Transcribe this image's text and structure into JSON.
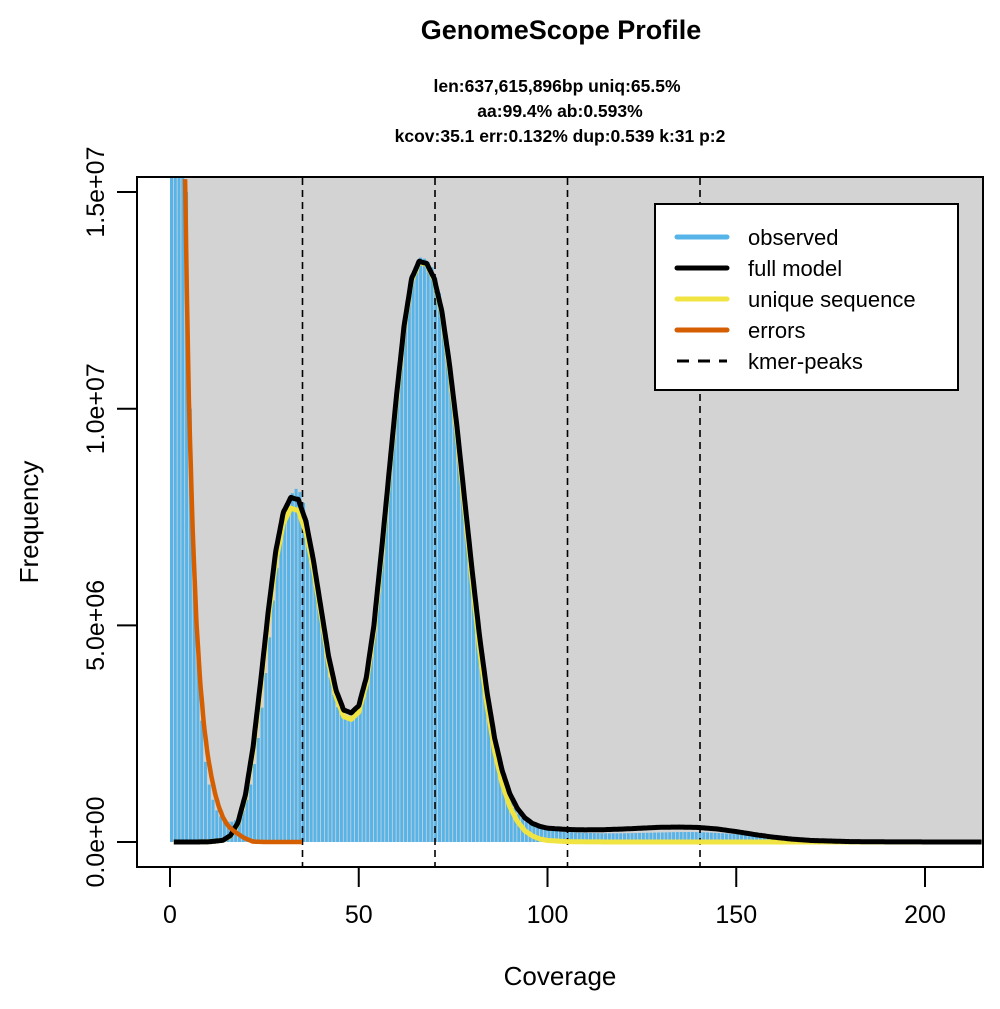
{
  "chart_data": {
    "type": "line",
    "title": "GenomeScope Profile",
    "subtitle_lines": [
      "len:637,615,896bp uniq:65.5%",
      "aa:99.4% ab:0.593%",
      "kcov:35.1 err:0.132%  dup:0.539  k:31 p:2"
    ],
    "xlabel": "Coverage",
    "ylabel": "Frequency",
    "xlim": [
      0,
      215
    ],
    "ylim": [
      0,
      15300000
    ],
    "x_ticks": [
      0,
      50,
      100,
      150,
      200
    ],
    "x_tick_labels": [
      "0",
      "50",
      "100",
      "150",
      "200"
    ],
    "y_ticks": [
      0,
      5000000,
      10000000,
      15000000
    ],
    "y_tick_labels": [
      "0.0e+00",
      "5.0e+06",
      "1.0e+07",
      "1.5e+07"
    ],
    "grid": false,
    "background": "#d3d3d3",
    "legend_position": "top-right",
    "kmer_peaks": [
      35.1,
      70.2,
      105.3,
      140.4
    ],
    "series": [
      {
        "name": "observed",
        "style": "histogram",
        "color": "#56b4e9",
        "x": [
          1,
          2,
          3,
          4,
          5,
          6,
          7,
          8,
          9,
          10,
          12,
          14,
          16,
          18,
          20,
          22,
          24,
          26,
          28,
          30,
          32,
          34,
          36,
          38,
          40,
          42,
          44,
          46,
          48,
          50,
          52,
          54,
          56,
          58,
          60,
          62,
          64,
          66,
          68,
          70,
          72,
          74,
          76,
          78,
          80,
          82,
          84,
          86,
          88,
          90,
          92,
          94,
          96,
          98,
          100,
          105,
          110,
          115,
          120,
          125,
          130,
          135,
          140,
          145,
          150,
          155,
          160,
          165,
          170,
          180,
          190,
          200,
          215
        ],
        "values": [
          20000000,
          20000000,
          20000000,
          18000000,
          12000000,
          8000000,
          5200000,
          3400000,
          2200000,
          1500000,
          800000,
          520000,
          450000,
          520000,
          800000,
          1500000,
          2700000,
          4300000,
          6000000,
          7300000,
          8000000,
          8200000,
          7700000,
          6600000,
          5200000,
          4000000,
          3200000,
          2850000,
          2780000,
          3000000,
          3700000,
          4900000,
          6500000,
          8300000,
          10100000,
          11700000,
          12900000,
          13500000,
          13450000,
          13200000,
          12500000,
          11300000,
          9800000,
          8100000,
          6400000,
          4800000,
          3500000,
          2400000,
          1600000,
          1050000,
          700000,
          500000,
          380000,
          320000,
          280000,
          230000,
          210000,
          200000,
          200000,
          210000,
          220000,
          230000,
          230000,
          210000,
          180000,
          140000,
          110000,
          80000,
          60000,
          40000,
          30000,
          25000,
          20000
        ]
      },
      {
        "name": "full model",
        "style": "line",
        "color": "#000000",
        "x": [
          1,
          5,
          10,
          14,
          16,
          18,
          20,
          22,
          24,
          26,
          28,
          30,
          32,
          34,
          36,
          38,
          40,
          42,
          44,
          46,
          48,
          50,
          52,
          54,
          56,
          58,
          60,
          62,
          64,
          66,
          68,
          70,
          72,
          74,
          76,
          78,
          80,
          82,
          84,
          86,
          88,
          90,
          92,
          94,
          96,
          98,
          100,
          105,
          110,
          115,
          120,
          125,
          130,
          135,
          140,
          145,
          150,
          155,
          160,
          165,
          170,
          180,
          190,
          200,
          215
        ],
        "values": [
          0,
          0,
          2000,
          40000,
          150000,
          450000,
          1100000,
          2200000,
          3700000,
          5300000,
          6700000,
          7600000,
          7950000,
          7900000,
          7400000,
          6500000,
          5400000,
          4300000,
          3500000,
          3050000,
          2980000,
          3150000,
          3800000,
          5000000,
          6700000,
          8500000,
          10300000,
          11900000,
          13000000,
          13400000,
          13350000,
          13000000,
          12250000,
          11050000,
          9600000,
          7950000,
          6300000,
          4750000,
          3450000,
          2400000,
          1650000,
          1120000,
          780000,
          560000,
          430000,
          360000,
          320000,
          290000,
          280000,
          285000,
          300000,
          320000,
          340000,
          345000,
          335000,
          300000,
          240000,
          170000,
          110000,
          65000,
          35000,
          10000,
          3000,
          1000,
          0
        ]
      },
      {
        "name": "unique sequence",
        "style": "line",
        "color": "#f0e442",
        "x": [
          1,
          5,
          10,
          14,
          16,
          18,
          20,
          22,
          24,
          26,
          28,
          30,
          32,
          34,
          36,
          38,
          40,
          42,
          44,
          46,
          48,
          50,
          52,
          54,
          56,
          58,
          60,
          62,
          64,
          66,
          68,
          70,
          72,
          74,
          76,
          78,
          80,
          82,
          84,
          86,
          88,
          90,
          92,
          94,
          96,
          98,
          100,
          105,
          110,
          115,
          120,
          140,
          160,
          180,
          200,
          215
        ],
        "values": [
          0,
          0,
          2000,
          40000,
          140000,
          430000,
          1050000,
          2100000,
          3550000,
          5100000,
          6450000,
          7350000,
          7700000,
          7650000,
          7150000,
          6300000,
          5250000,
          4150000,
          3350000,
          2900000,
          2830000,
          3000000,
          3650000,
          4850000,
          6550000,
          8400000,
          10200000,
          11850000,
          12950000,
          13380000,
          13330000,
          12970000,
          12200000,
          10950000,
          9450000,
          7750000,
          6050000,
          4450000,
          3150000,
          2100000,
          1350000,
          820000,
          480000,
          260000,
          140000,
          70000,
          35000,
          10000,
          3000,
          1000,
          0,
          0,
          0,
          0,
          0,
          0
        ]
      },
      {
        "name": "errors",
        "style": "line",
        "color": "#d55e00",
        "x": [
          4,
          4.5,
          5,
          6,
          7,
          8,
          9,
          10,
          11,
          12,
          13,
          14,
          15,
          16,
          17,
          18,
          19,
          20,
          22,
          25,
          30,
          35
        ],
        "values": [
          15300000,
          12500000,
          10200000,
          7200000,
          5100000,
          3700000,
          2700000,
          2000000,
          1500000,
          1100000,
          800000,
          580000,
          420000,
          320000,
          250000,
          190000,
          130000,
          80000,
          10000,
          0,
          0,
          0
        ]
      },
      {
        "name": "kmer-peaks",
        "style": "dashed-vline",
        "color": "#000000",
        "x": [
          35.1,
          70.2,
          105.3,
          140.4
        ]
      }
    ],
    "legend": [
      {
        "label": "observed",
        "color": "#56b4e9",
        "dash": false
      },
      {
        "label": "full model",
        "color": "#000000",
        "dash": false
      },
      {
        "label": "unique sequence",
        "color": "#f0e442",
        "dash": false
      },
      {
        "label": "errors",
        "color": "#d55e00",
        "dash": false
      },
      {
        "label": "kmer-peaks",
        "color": "#000000",
        "dash": true
      }
    ]
  }
}
